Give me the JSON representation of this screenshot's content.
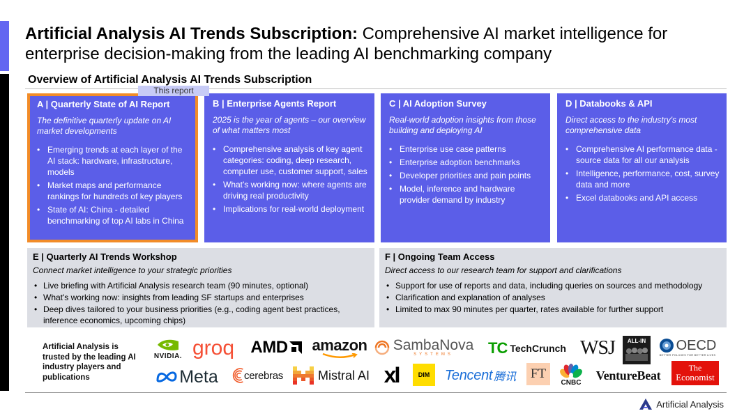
{
  "title": {
    "bold": "Artificial Analysis AI Trends Subscription:",
    "rest": " Comprehensive AI market intelligence for enterprise decision-making from the leading AI benchmarking company"
  },
  "section_title": "Overview of Artificial Analysis AI Trends Subscription",
  "tag": "This report",
  "cards": [
    {
      "head": "A | Quarterly State of AI Report",
      "sub": "The definitive quarterly update on AI market developments",
      "bullets": [
        "Emerging trends at each layer of the AI stack: hardware, infrastructure, models",
        "Market maps and performance rankings for hundreds of key players",
        "State of AI: China - detailed benchmarking of top AI labs in China"
      ]
    },
    {
      "head": "B | Enterprise Agents Report",
      "sub": "2025 is the year of agents – our overview of what matters most",
      "bullets": [
        "Comprehensive analysis of key agent categories: coding, deep research, computer use, customer support, sales",
        "What's working now: where agents are driving real productivity",
        "Implications for real-world deployment"
      ]
    },
    {
      "head": "C | AI Adoption Survey",
      "sub": "Real-world adoption insights from those building and deploying AI",
      "bullets": [
        "Enterprise use case patterns",
        "Enterprise adoption benchmarks",
        "Developer priorities and pain points",
        "Model, inference and hardware provider demand by industry"
      ]
    },
    {
      "head": "D | Databooks & API",
      "sub": "Direct access to the industry's most comprehensive data",
      "bullets": [
        "Comprehensive AI performance data - source data for all our analysis",
        "Intelligence, performance, cost, survey data and more",
        "Excel databooks and API access"
      ]
    }
  ],
  "panels": [
    {
      "head": "E | Quarterly AI Trends Workshop",
      "sub": "Connect market intelligence to your strategic priorities",
      "bullets": [
        "Live briefing with Artificial Analysis research team (90 minutes, optional)",
        "What's working now: insights from leading SF startups and enterprises",
        "Deep dives tailored to your business priorities (e.g., coding agent best practices, inference economics, upcoming chips)"
      ]
    },
    {
      "head": "F | Ongoing Team Access",
      "sub": "Direct access to our research team for support and clarifications",
      "bullets": [
        "Support for use of reports and data, including queries on sources and methodology",
        "Clarification and explanation of analyses",
        "Limited to max 90 minutes per quarter, rates available for further support"
      ]
    }
  ],
  "trusted_text": "Artificial Analysis is trusted by the leading AI industry players and publications",
  "logos": {
    "nvidia": "NVIDIA.",
    "groq": "groq",
    "amd": "AMD",
    "amazon": "amazon",
    "sambanova": "SambaNova",
    "sambanova_sub": "SYSTEMS",
    "techcrunch_mark": "TC",
    "techcrunch": "TechCrunch",
    "wsj": "WSJ",
    "allin": "ALL-IN",
    "oecd": "OECD",
    "oecd_sub": "BETTER POLICIES FOR BETTER LIVES",
    "meta": "Meta",
    "cerebras": "cerebras",
    "mistral": "Mistral AI",
    "xai": "xI",
    "dim": "DIM",
    "tencent": "Tencent",
    "tencent_cn": "腾讯",
    "ft": "FT",
    "cnbc": "CNBC",
    "venturebeat": "VentureBeat",
    "economist_1": "The",
    "economist_2": "Economist"
  },
  "footer_brand": "Artificial Analysis",
  "colors": {
    "accent": "#5b5ee8",
    "highlight_border": "#f28c28",
    "panel_bg": "#dcdee4"
  }
}
